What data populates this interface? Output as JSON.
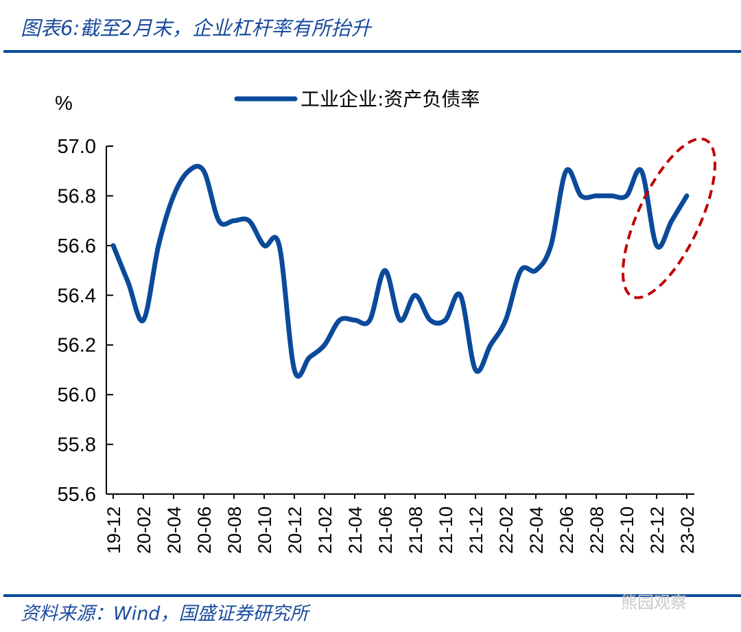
{
  "title": "图表6:截至2月末，企业杠杆率有所抬升",
  "source": "资料来源：Wind，国盛证券研究所",
  "watermark": "熊园观察",
  "colors": {
    "line": "#0b4a9a",
    "highlight": "#c00000",
    "title": "#1a4c9c"
  },
  "chart_data": {
    "type": "line",
    "title": "",
    "ylabel": "%",
    "xlabel": "",
    "ylim": [
      55.6,
      57.0
    ],
    "yticks": [
      "55.6",
      "55.8",
      "56.0",
      "56.2",
      "56.4",
      "56.6",
      "56.8",
      "57.0"
    ],
    "xtick_labels": [
      "19-12",
      "20-02",
      "20-04",
      "20-06",
      "20-08",
      "20-10",
      "20-12",
      "21-02",
      "21-04",
      "21-06",
      "21-08",
      "21-10",
      "21-12",
      "22-02",
      "22-04",
      "22-06",
      "22-08",
      "22-10",
      "22-12",
      "23-02"
    ],
    "legend": "工业企业:资产负债率",
    "legend_position": "top-center",
    "grid": false,
    "series": [
      {
        "name": "工业企业:资产负债率",
        "x": [
          "19-12",
          "20-01",
          "20-02",
          "20-03",
          "20-04",
          "20-05",
          "20-06",
          "20-07",
          "20-08",
          "20-09",
          "20-10",
          "20-11",
          "20-12",
          "21-01",
          "21-02",
          "21-03",
          "21-04",
          "21-05",
          "21-06",
          "21-07",
          "21-08",
          "21-09",
          "21-10",
          "21-11",
          "21-12",
          "22-01",
          "22-02",
          "22-03",
          "22-04",
          "22-05",
          "22-06",
          "22-07",
          "22-08",
          "22-09",
          "22-10",
          "22-11",
          "22-12",
          "23-01",
          "23-02"
        ],
        "values": [
          56.6,
          56.45,
          56.3,
          56.6,
          56.8,
          56.9,
          56.9,
          56.7,
          56.7,
          56.7,
          56.6,
          56.6,
          56.1,
          56.15,
          56.2,
          56.3,
          56.3,
          56.3,
          56.5,
          56.3,
          56.4,
          56.3,
          56.3,
          56.4,
          56.1,
          56.2,
          56.3,
          56.5,
          56.5,
          56.6,
          56.9,
          56.8,
          56.8,
          56.8,
          56.8,
          56.9,
          56.6,
          56.7,
          56.8
        ]
      }
    ],
    "annotation": "dashed ellipse highlighting 22-11 to 23-02"
  }
}
